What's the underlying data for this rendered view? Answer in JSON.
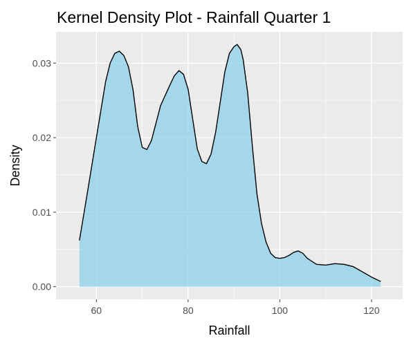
{
  "chart_data": {
    "type": "area",
    "title": "Kernel Density Plot - Rainfall Quarter 1",
    "xlabel": "Rainfall",
    "ylabel": "Density",
    "xlim": [
      51.2,
      126.8
    ],
    "ylim": [
      -0.0017,
      0.0342
    ],
    "x_ticks": [
      60,
      80,
      100,
      120
    ],
    "x_tick_labels": [
      "60",
      "80",
      "100",
      "120"
    ],
    "y_ticks": [
      0.0,
      0.01,
      0.02,
      0.03
    ],
    "y_tick_labels": [
      "0.00",
      "0.01",
      "0.02",
      "0.03"
    ],
    "grid": true,
    "legend": "none",
    "colors": {
      "panel": "#ebebeb",
      "grid": "#ffffff",
      "fill": "#87ceeb",
      "fill_opacity": 0.7,
      "line": "#000000",
      "tick": "#333333"
    },
    "series": [
      {
        "x": [
          56.3,
          58,
          60,
          62,
          63,
          64,
          65,
          66,
          67,
          68,
          69,
          70,
          71,
          72,
          74,
          76,
          77,
          78,
          79,
          80,
          81,
          82,
          83,
          84,
          85,
          86,
          87,
          88,
          89,
          90,
          90.7,
          91.5,
          92,
          93,
          94,
          95,
          96,
          97,
          98,
          99,
          100,
          101,
          102,
          103,
          104,
          105,
          106,
          108,
          110,
          112,
          114,
          116,
          118,
          120,
          122
        ],
        "y": [
          0.0062,
          0.0125,
          0.02,
          0.0275,
          0.03,
          0.0313,
          0.0316,
          0.031,
          0.0295,
          0.0264,
          0.0215,
          0.0187,
          0.0184,
          0.0196,
          0.0243,
          0.027,
          0.0283,
          0.029,
          0.0285,
          0.0265,
          0.0225,
          0.0185,
          0.0168,
          0.0165,
          0.0178,
          0.0207,
          0.0247,
          0.0288,
          0.0313,
          0.0322,
          0.0325,
          0.0318,
          0.0305,
          0.026,
          0.019,
          0.0125,
          0.0085,
          0.006,
          0.0045,
          0.0039,
          0.0038,
          0.0039,
          0.0042,
          0.0046,
          0.0048,
          0.0045,
          0.0038,
          0.003,
          0.0029,
          0.0031,
          0.003,
          0.0027,
          0.002,
          0.0013,
          0.0007
        ]
      }
    ]
  }
}
